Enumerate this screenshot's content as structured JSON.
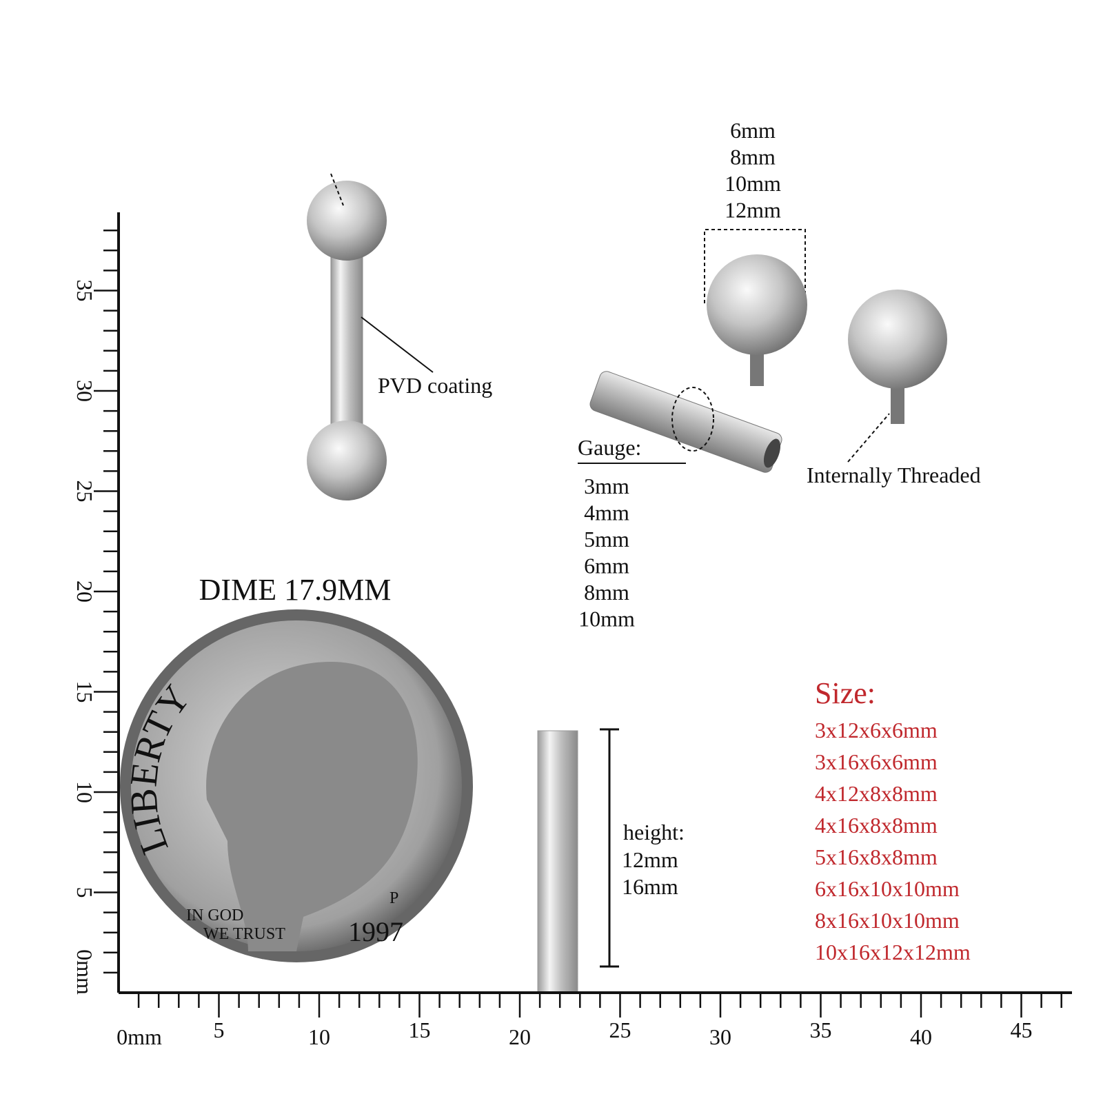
{
  "dime_label": "DIME 17.9MM",
  "coating_label": "PVD coating",
  "ball_sizes": [
    "6mm",
    "8mm",
    "10mm",
    "12mm"
  ],
  "gauge": {
    "title": "Gauge:",
    "sizes": [
      "3mm",
      "4mm",
      "5mm",
      "6mm",
      "8mm",
      "10mm"
    ]
  },
  "thread_label": "Internally Threaded",
  "height": {
    "title": "height:",
    "sizes": [
      "12mm",
      "16mm"
    ]
  },
  "size": {
    "title": "Size:",
    "options": [
      "3x12x6x6mm",
      "3x16x6x6mm",
      "4x12x8x8mm",
      "4x16x8x8mm",
      "5x16x8x8mm",
      "6x16x10x10mm",
      "8x16x10x10mm",
      "10x16x12x12mm"
    ]
  },
  "dime": {
    "top": "LIBERTY",
    "motto_1": "IN GOD",
    "motto_2": "WE TRUST",
    "year": "1997",
    "mint": "P"
  },
  "ruler": {
    "x_labels": [
      "0mm",
      "5",
      "10",
      "15",
      "20",
      "25",
      "30",
      "35",
      "40",
      "45"
    ],
    "y_labels": [
      "0mm",
      "5",
      "10",
      "15",
      "20",
      "25",
      "30",
      "35"
    ]
  }
}
